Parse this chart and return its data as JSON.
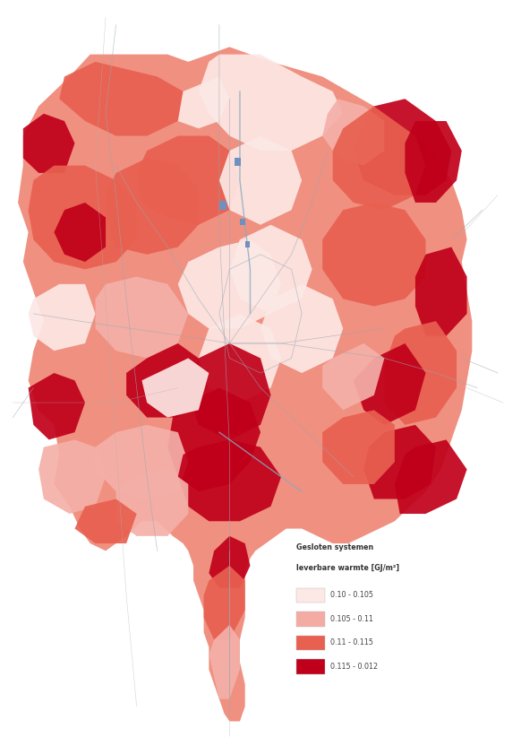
{
  "legend_title_line1": "Gesloten systemen",
  "legend_title_line2": "leverbare warmte [GJ/m²]",
  "legend_entries": [
    {
      "label": "0.10 - 0.105",
      "color": "#fce8e5"
    },
    {
      "label": "0.105 - 0.11",
      "color": "#f4aba3"
    },
    {
      "label": "0.11 - 0.115",
      "color": "#e86050"
    },
    {
      "label": "0.115 - 0.012",
      "color": "#c0001a"
    }
  ],
  "background_color": "#ffffff",
  "fig_width": 5.82,
  "fig_height": 8.32
}
